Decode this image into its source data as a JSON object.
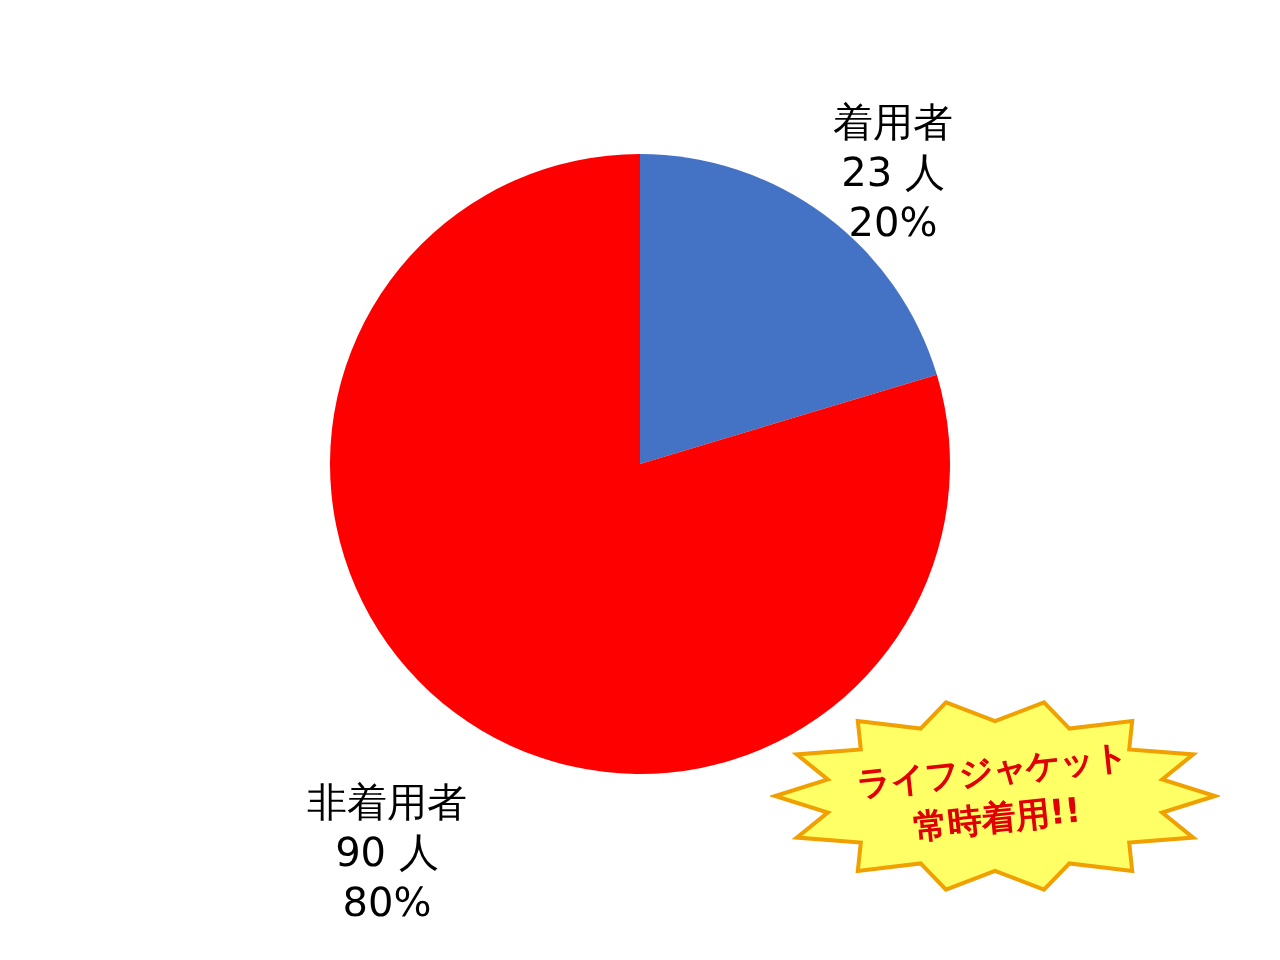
{
  "chart_data": {
    "type": "pie",
    "categories": [
      "着用者",
      "非着用者"
    ],
    "values": [
      23,
      90
    ],
    "colors": [
      "#4472c4",
      "#ff0000"
    ],
    "value_labels": [
      "23 人\n20%",
      "90 人\n80%"
    ],
    "annotations": [
      "ライフジャケット",
      "常時着用!!"
    ]
  }
}
